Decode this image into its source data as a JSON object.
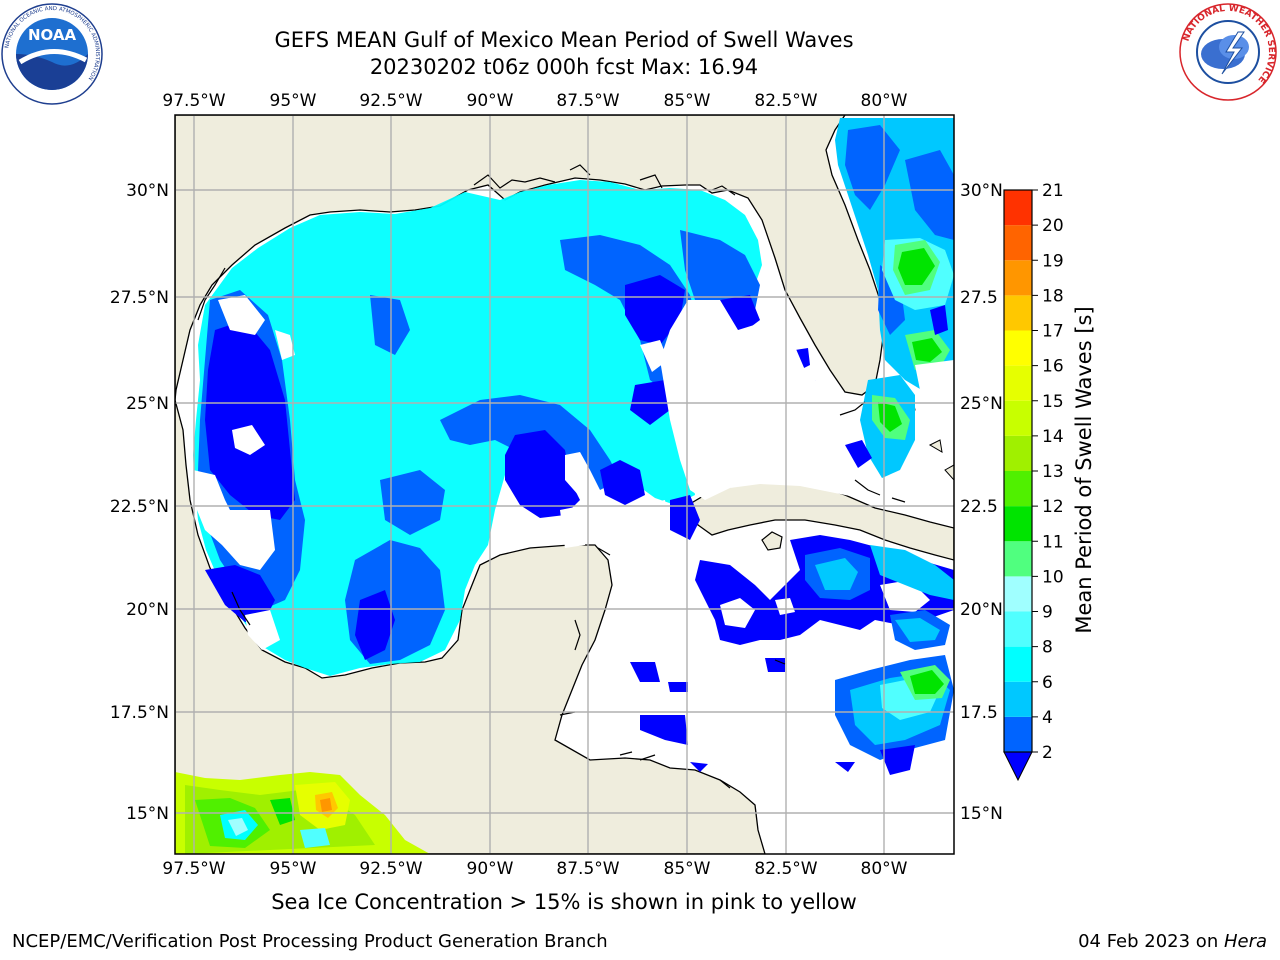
{
  "header": {
    "title_line1": "GEFS MEAN Gulf of Mexico Mean Period of Swell Waves",
    "title_line2": "20230202 t06z 000h fcst   Max: 16.94"
  },
  "logos": {
    "noaa_text": "NOAA",
    "noaa_ring_text": "NATIONAL OCEANIC AND ATMOSPHERIC ADMINISTRATION",
    "noaa_bottom_text": "U.S. DEPARTMENT OF COMMERCE",
    "nws_ring_text": "NATIONAL WEATHER SERVICE"
  },
  "map": {
    "lon_labels": [
      "97.5°W",
      "95°W",
      "92.5°W",
      "90°W",
      "87.5°W",
      "85°W",
      "82.5°W",
      "80°W"
    ],
    "lat_labels_left": [
      "30°N",
      "27.5°N",
      "25°N",
      "22.5°N",
      "20°N",
      "17.5°N",
      "15°N"
    ],
    "lat_labels_right": [
      "30°N",
      "27.5",
      "25°N",
      "22.5",
      "20°N",
      "17.5",
      "15°N"
    ],
    "colors": {
      "land": "#efeddd",
      "grid": "#b0b0b0",
      "ocean_no_data": "#ffffff"
    }
  },
  "colorbar": {
    "label": "Mean Period of Swell Waves [s]",
    "ticks": [
      "2",
      "4",
      "6",
      "8",
      "9",
      "10",
      "11",
      "12",
      "13",
      "14",
      "15",
      "16",
      "17",
      "18",
      "19",
      "20",
      "21"
    ],
    "colors": [
      "#0064ff",
      "#00c8ff",
      "#00ffff",
      "#50ffff",
      "#a0ffff",
      "#50ff7f",
      "#00e400",
      "#50f000",
      "#a0f000",
      "#c8ff00",
      "#e6ff00",
      "#ffff00",
      "#ffc800",
      "#ff9600",
      "#ff6400",
      "#ff3200",
      "#ff0000"
    ],
    "extend_color": "#0000ff"
  },
  "caption": "Sea Ice Concentration > 15% is shown in pink to yellow",
  "footer": {
    "left": "NCEP/EMC/Verification Post Processing Product Generation Branch",
    "right_date": "04 Feb 2023 on ",
    "right_host": "Hera"
  }
}
